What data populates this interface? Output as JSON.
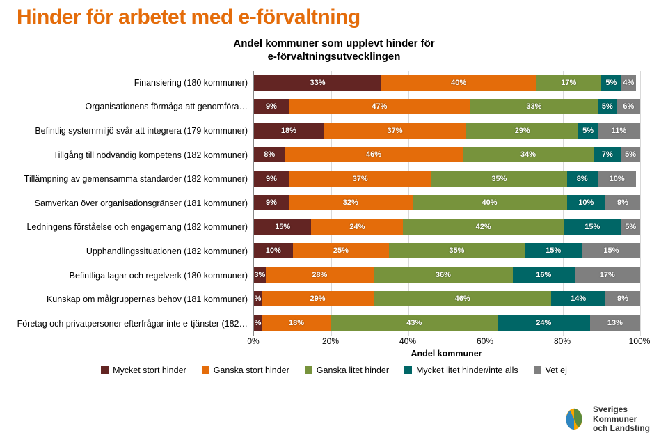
{
  "title": {
    "text": "Hinder för arbetet med e-förvaltning",
    "color": "#e46c0a",
    "fontsize": 30,
    "weight": "bold"
  },
  "subtitle": {
    "line1": "Andel kommuner som upplevt hinder för",
    "line2": "e-förvaltningsutvecklingen",
    "fontsize": 15
  },
  "chart": {
    "type": "stacked-horizontal-bar",
    "background": "#ffffff",
    "grid_color": "#d9d9d9",
    "xlim": [
      0,
      100
    ],
    "xtick_step": 20,
    "x_ticks": [
      "0%",
      "20%",
      "40%",
      "60%",
      "80%",
      "100%"
    ],
    "x_title": "Andel kommuner",
    "fontsize_axis": 12,
    "series": [
      {
        "key": "mycket_stort",
        "label": "Mycket stort hinder",
        "color": "#632523"
      },
      {
        "key": "ganska_stort",
        "label": "Ganska stort hinder",
        "color": "#e46c0a"
      },
      {
        "key": "ganska_litet",
        "label": "Ganska litet hinder",
        "color": "#77933c"
      },
      {
        "key": "litet_inte",
        "label": "Mycket litet hinder/inte alls",
        "color": "#006666"
      },
      {
        "key": "vet_ej",
        "label": "Vet ej",
        "color": "#7f7f7f"
      }
    ],
    "categories": [
      {
        "label": "Finansiering (180 kommuner)",
        "values": [
          33,
          40,
          17,
          5,
          4
        ]
      },
      {
        "label": "Organisationens förmåga att genomföra…",
        "values": [
          9,
          47,
          33,
          5,
          6
        ]
      },
      {
        "label": "Befintlig systemmiljö svår att integrera (179 kommuner)",
        "values": [
          18,
          37,
          29,
          5,
          11
        ]
      },
      {
        "label": "Tillgång till nödvändig kompetens (182 kommuner)",
        "values": [
          8,
          46,
          34,
          7,
          5
        ]
      },
      {
        "label": "Tillämpning av gemensamma standarder (182 kommuner)",
        "values": [
          9,
          37,
          35,
          8,
          10
        ]
      },
      {
        "label": "Samverkan över organisationsgränser (181 kommuner)",
        "values": [
          9,
          32,
          40,
          10,
          9
        ]
      },
      {
        "label": "Ledningens förståelse och engagemang  (182 kommuner)",
        "values": [
          15,
          24,
          42,
          15,
          5
        ]
      },
      {
        "label": "Upphandlingssituationen (182 kommuner)",
        "values": [
          10,
          25,
          35,
          15,
          15
        ]
      },
      {
        "label": "Befintliga lagar och regelverk (180 kommuner)",
        "values": [
          3,
          28,
          36,
          16,
          17
        ]
      },
      {
        "label": "Kunskap om målgruppernas behov (181 kommuner)",
        "values": [
          2,
          29,
          46,
          14,
          9
        ],
        "label_overrides": {
          "0": "%"
        }
      },
      {
        "label": "Företag och privatpersoner efterfrågar inte e-tjänster (182…",
        "values": [
          2,
          18,
          43,
          24,
          13
        ],
        "label_overrides": {
          "0": "%"
        }
      }
    ]
  },
  "logo": {
    "line1": "Sveriges",
    "line2": "Kommuner",
    "line3": "och Landsting",
    "colors": {
      "yellow": "#f6a500",
      "green": "#5b8a3c",
      "blue": "#2e86c1"
    }
  }
}
